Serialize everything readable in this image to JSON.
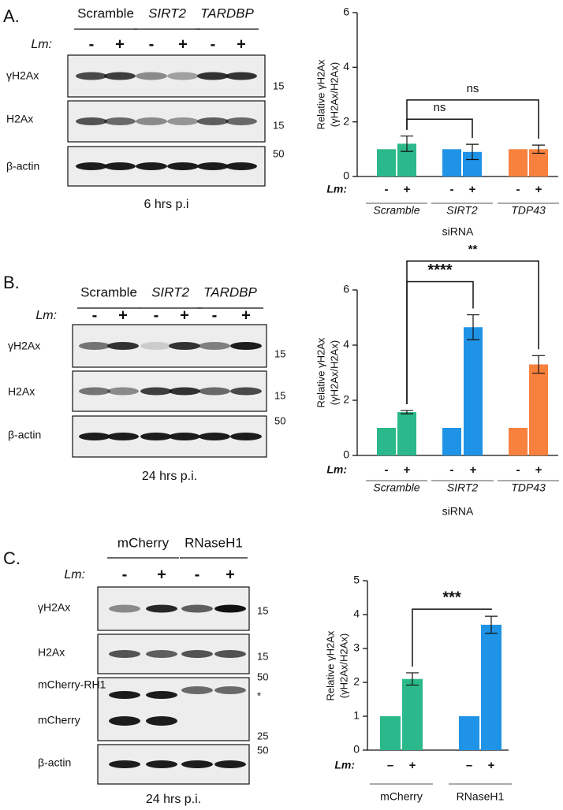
{
  "figure": {
    "panels": [
      {
        "label": "A.",
        "blot": {
          "headers": [
            {
              "text": "Scramble",
              "color": "#1f9e6e",
              "italic": false
            },
            {
              "text": "SIRT2",
              "color": "#1b87d6",
              "italic": true
            },
            {
              "text": "TARDBP",
              "color": "#f5813f",
              "italic": true
            }
          ],
          "lm_label": "Lm:",
          "lanes": [
            "-",
            "+",
            "-",
            "+",
            "-",
            "+"
          ],
          "rows": [
            {
              "labels": [
                "γH2Ax"
              ],
              "markers": [
                "15"
              ]
            },
            {
              "labels": [
                "H2Ax"
              ],
              "markers": [
                "15"
              ]
            },
            {
              "labels": [
                "β-actin"
              ],
              "markers": [
                "50"
              ]
            }
          ],
          "caption": "6 hrs p.i"
        }
      },
      {
        "label": "B.",
        "blot": {
          "headers": [
            {
              "text": "Scramble",
              "color": "#1f9e6e",
              "italic": false
            },
            {
              "text": "SIRT2",
              "color": "#1b87d6",
              "italic": true
            },
            {
              "text": "TARDBP",
              "color": "#f5813f",
              "italic": true
            }
          ],
          "lm_label": "Lm:",
          "lanes": [
            "-",
            "+",
            "-",
            "+",
            "-",
            "+"
          ],
          "rows": [
            {
              "labels": [
                "γH2Ax"
              ],
              "markers": [
                "15"
              ]
            },
            {
              "labels": [
                "H2Ax"
              ],
              "markers": [
                "15"
              ]
            },
            {
              "labels": [
                "β-actin"
              ],
              "markers": [
                "50"
              ]
            }
          ],
          "caption": "24 hrs p.i."
        }
      },
      {
        "label": "C.",
        "blot": {
          "headers": [
            {
              "text": "mCherry",
              "color": "#1f9e6e",
              "italic": false
            },
            {
              "text": "RNaseH1",
              "color": "#1b87d6",
              "italic": false
            }
          ],
          "lm_label": "Lm:",
          "lanes": [
            "-",
            "+",
            "-",
            "+"
          ],
          "rows": [
            {
              "labels": [
                "γH2Ax"
              ],
              "markers": [
                "15"
              ]
            },
            {
              "labels": [
                "H2Ax"
              ],
              "markers": [
                "15"
              ]
            },
            {
              "labels": [
                "mCherry-RH1",
                "mCherry"
              ],
              "markers": [
                "50",
                "*",
                "25"
              ]
            },
            {
              "labels": [
                "β-actin"
              ],
              "markers": [
                "50"
              ]
            }
          ],
          "caption": "24 hrs p.i."
        }
      }
    ]
  },
  "chart_data": [
    {
      "type": "bar",
      "ylabel": [
        "Relative γH2Ax",
        "(γH2Ax/H2Ax)"
      ],
      "ylim": [
        0,
        6
      ],
      "yticks": [
        0,
        2,
        4,
        6
      ],
      "lm_label": "Lm:",
      "categories": [
        "-",
        "+",
        "-",
        "+",
        "-",
        "+"
      ],
      "values": [
        1,
        1.2,
        1,
        0.9,
        1,
        1
      ],
      "errors": [
        null,
        0.28,
        null,
        0.28,
        null,
        0.15
      ],
      "colors": [
        "#2bb88a",
        "#2bb88a",
        "#1f93e6",
        "#1f93e6",
        "#f7813d",
        "#f7813d"
      ],
      "groups": [
        {
          "name": "Scramble",
          "color": "#1f9e6e",
          "italic": true
        },
        {
          "name": "SIRT2",
          "color": "#1b87d6",
          "italic": true
        },
        {
          "name": "TDP43",
          "color": "#f5813f",
          "italic": true
        }
      ],
      "xlabel": "siRNA",
      "annotations": [
        {
          "from": 1,
          "to": 3,
          "y": 2.1,
          "text": "ns"
        },
        {
          "from": 1,
          "to": 5,
          "y": 2.8,
          "text": "ns"
        }
      ]
    },
    {
      "type": "bar",
      "ylabel": [
        "Relative γH2Ax",
        "(γH2Ax/H2Ax)"
      ],
      "ylim": [
        0,
        6
      ],
      "yticks": [
        0,
        2,
        4,
        6
      ],
      "lm_label": "Lm:",
      "categories": [
        "-",
        "+",
        "-",
        "+",
        "-",
        "+"
      ],
      "values": [
        1,
        1.57,
        1,
        4.65,
        1,
        3.3
      ],
      "errors": [
        null,
        0.06,
        null,
        0.45,
        null,
        0.32
      ],
      "colors": [
        "#2bb88a",
        "#2bb88a",
        "#1f93e6",
        "#1f93e6",
        "#f7813d",
        "#f7813d"
      ],
      "groups": [
        {
          "name": "Scramble",
          "color": "#1f9e6e",
          "italic": true
        },
        {
          "name": "SIRT2",
          "color": "#1b87d6",
          "italic": true
        },
        {
          "name": "TDP43",
          "color": "#f5813f",
          "italic": true
        }
      ],
      "xlabel": "siRNA",
      "annotations": [
        {
          "from": 1,
          "to": 3,
          "y": 6.3,
          "text": "****"
        },
        {
          "from": 1,
          "to": 5,
          "y": 7.05,
          "text": "**"
        }
      ]
    },
    {
      "type": "bar",
      "ylabel": [
        "Relative γH2Ax",
        "(γH2Ax/H2Ax)"
      ],
      "ylim": [
        0,
        5
      ],
      "yticks": [
        0,
        1,
        2,
        3,
        4,
        5
      ],
      "lm_label": "Lm:",
      "categories": [
        "–",
        "+",
        "–",
        "+"
      ],
      "values": [
        1,
        2.1,
        1,
        3.7
      ],
      "errors": [
        null,
        0.18,
        null,
        0.25
      ],
      "colors": [
        "#2bb88a",
        "#2bb88a",
        "#1f93e6",
        "#1f93e6"
      ],
      "groups": [
        {
          "name": "mCherry",
          "color": "#1f9e6e",
          "italic": false
        },
        {
          "name": "RNaseH1",
          "color": "#1b87d6",
          "italic": false
        }
      ],
      "annotations": [
        {
          "from": 1,
          "to": 3,
          "y": 4.16,
          "text": "***"
        }
      ]
    }
  ]
}
